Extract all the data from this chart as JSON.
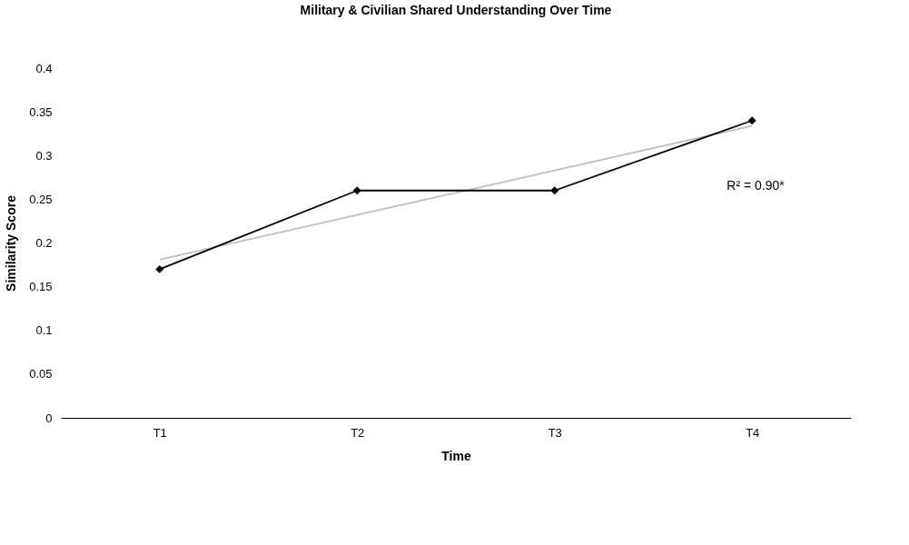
{
  "chart_data": {
    "type": "line",
    "title": "Military & Civilian Shared Understanding Over Time",
    "xlabel": "Time",
    "ylabel": "Similarity Score",
    "categories": [
      "T1",
      "T2",
      "T3",
      "T4"
    ],
    "series": [
      {
        "color": "#bfbfbf",
        "values": [
          0.181,
          0.232,
          0.283,
          0.334
        ],
        "marker": "none"
      },
      {
        "color": "#000000",
        "values": [
          0.17,
          0.26,
          0.26,
          0.34
        ],
        "marker": "diamond"
      }
    ],
    "ylim": [
      0,
      0.4
    ],
    "yticks": [
      0,
      0.05,
      0.1,
      0.15,
      0.2,
      0.25,
      0.3,
      0.35,
      0.4
    ],
    "annotations": [
      "R² = 0.90*"
    ],
    "grid": false,
    "line_style": "solid"
  }
}
